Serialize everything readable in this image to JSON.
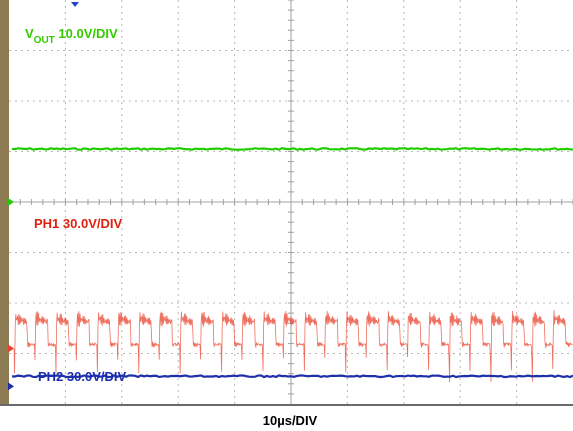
{
  "chart_data": {
    "type": "line",
    "title": "",
    "xlabel": "10µs/DIV",
    "grid": true,
    "x_divisions": 10,
    "y_divisions": 8,
    "series": [
      {
        "name": "VOUT 10.0V/DIV",
        "label_main": "V",
        "label_sub": "OUT",
        "label_scale": " 10.0V/DIV",
        "color": "#22cc00",
        "trace": "flat",
        "ground_level_div": 4.0,
        "level_div": 5.05
      },
      {
        "name": "PH1 30.0V/DIV",
        "color": "#e8402a",
        "trace": "switching",
        "ground_level_div": 1.1,
        "low_level_div": 1.1,
        "high_level_div": 1.7,
        "pulses": 27,
        "ringing": true
      },
      {
        "name": "PH2 30.0V/DIV",
        "color": "#1f2fa8",
        "trace": "flat",
        "ground_level_div": 0.35,
        "level_div": 0.55
      }
    ]
  }
}
